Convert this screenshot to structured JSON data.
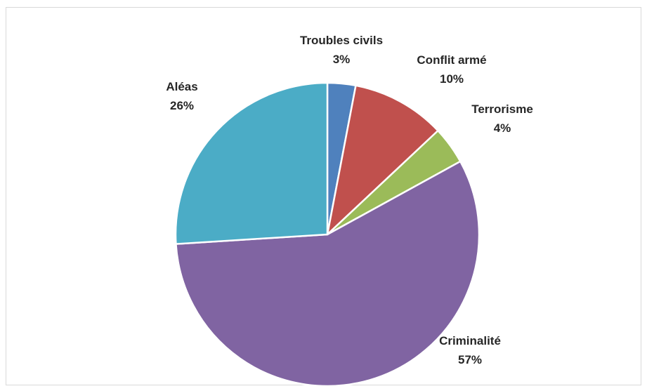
{
  "chart_data": {
    "type": "pie",
    "start_angle_deg": 0,
    "direction": "clockwise",
    "slices": [
      {
        "label": "Troubles civils",
        "value": 3,
        "value_label": "3%",
        "color": "#4f81bd"
      },
      {
        "label": "Conflit armé",
        "value": 10,
        "value_label": "10%",
        "color": "#c0504d"
      },
      {
        "label": "Terrorisme",
        "value": 4,
        "value_label": "4%",
        "color": "#9bbb59"
      },
      {
        "label": "Criminalité",
        "value": 57,
        "value_label": "57%",
        "color": "#8064a2"
      },
      {
        "label": "Aléas",
        "value": 26,
        "value_label": "26%",
        "color": "#4bacc6"
      }
    ],
    "legend": "none"
  }
}
